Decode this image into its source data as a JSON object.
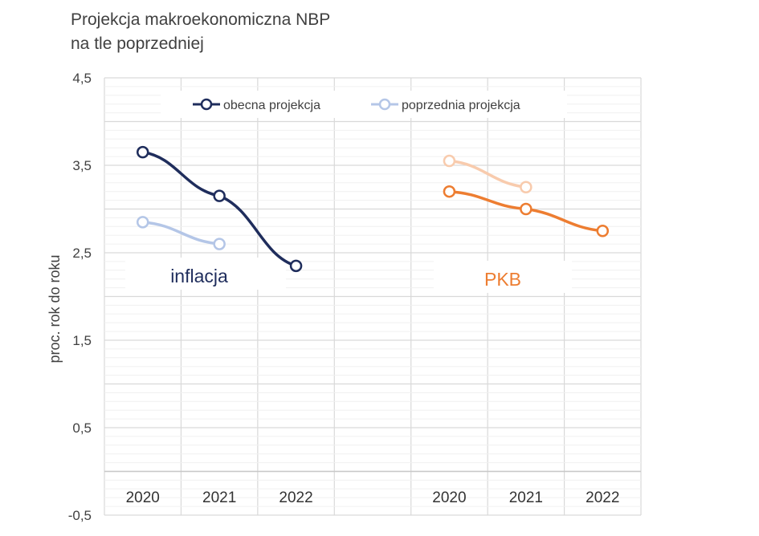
{
  "header": {
    "title_line1": "Projekcja makroekonomiczna NBP",
    "title_line2": "na tle poprzedniej"
  },
  "chart_data": {
    "type": "line",
    "title": "Projekcja makroekonomiczna NBP na tle poprzedniej",
    "ylabel": "proc. rok do roku",
    "ylim": [
      -0.5,
      4.5
    ],
    "yticks": [
      "4,5",
      "3,5",
      "2,5",
      "1,5",
      "0,5",
      "-0,5"
    ],
    "ytick_values": [
      4.5,
      3.5,
      2.5,
      1.5,
      0.5,
      -0.5
    ],
    "grid": true,
    "legend": {
      "position": "top",
      "entries": [
        "obecna projekcja",
        "poprzednia projekcja"
      ]
    },
    "panels": [
      {
        "label": "inflacja",
        "categories": [
          "2020",
          "2021",
          "2022"
        ],
        "series": [
          {
            "name": "obecna projekcja",
            "color": "#1f2d5c",
            "values": [
              3.65,
              3.15,
              2.35
            ]
          },
          {
            "name": "poprzednia projekcja",
            "color": "#b4c6e7",
            "values": [
              2.85,
              2.6,
              null
            ]
          }
        ]
      },
      {
        "label": "PKB",
        "categories": [
          "2020",
          "2021",
          "2022"
        ],
        "series": [
          {
            "name": "obecna projekcja",
            "color": "#ed7d31",
            "values": [
              3.2,
              3.0,
              2.75
            ]
          },
          {
            "name": "poprzednia projekcja",
            "color": "#f8cbad",
            "values": [
              3.55,
              3.25,
              null
            ]
          }
        ]
      }
    ]
  }
}
